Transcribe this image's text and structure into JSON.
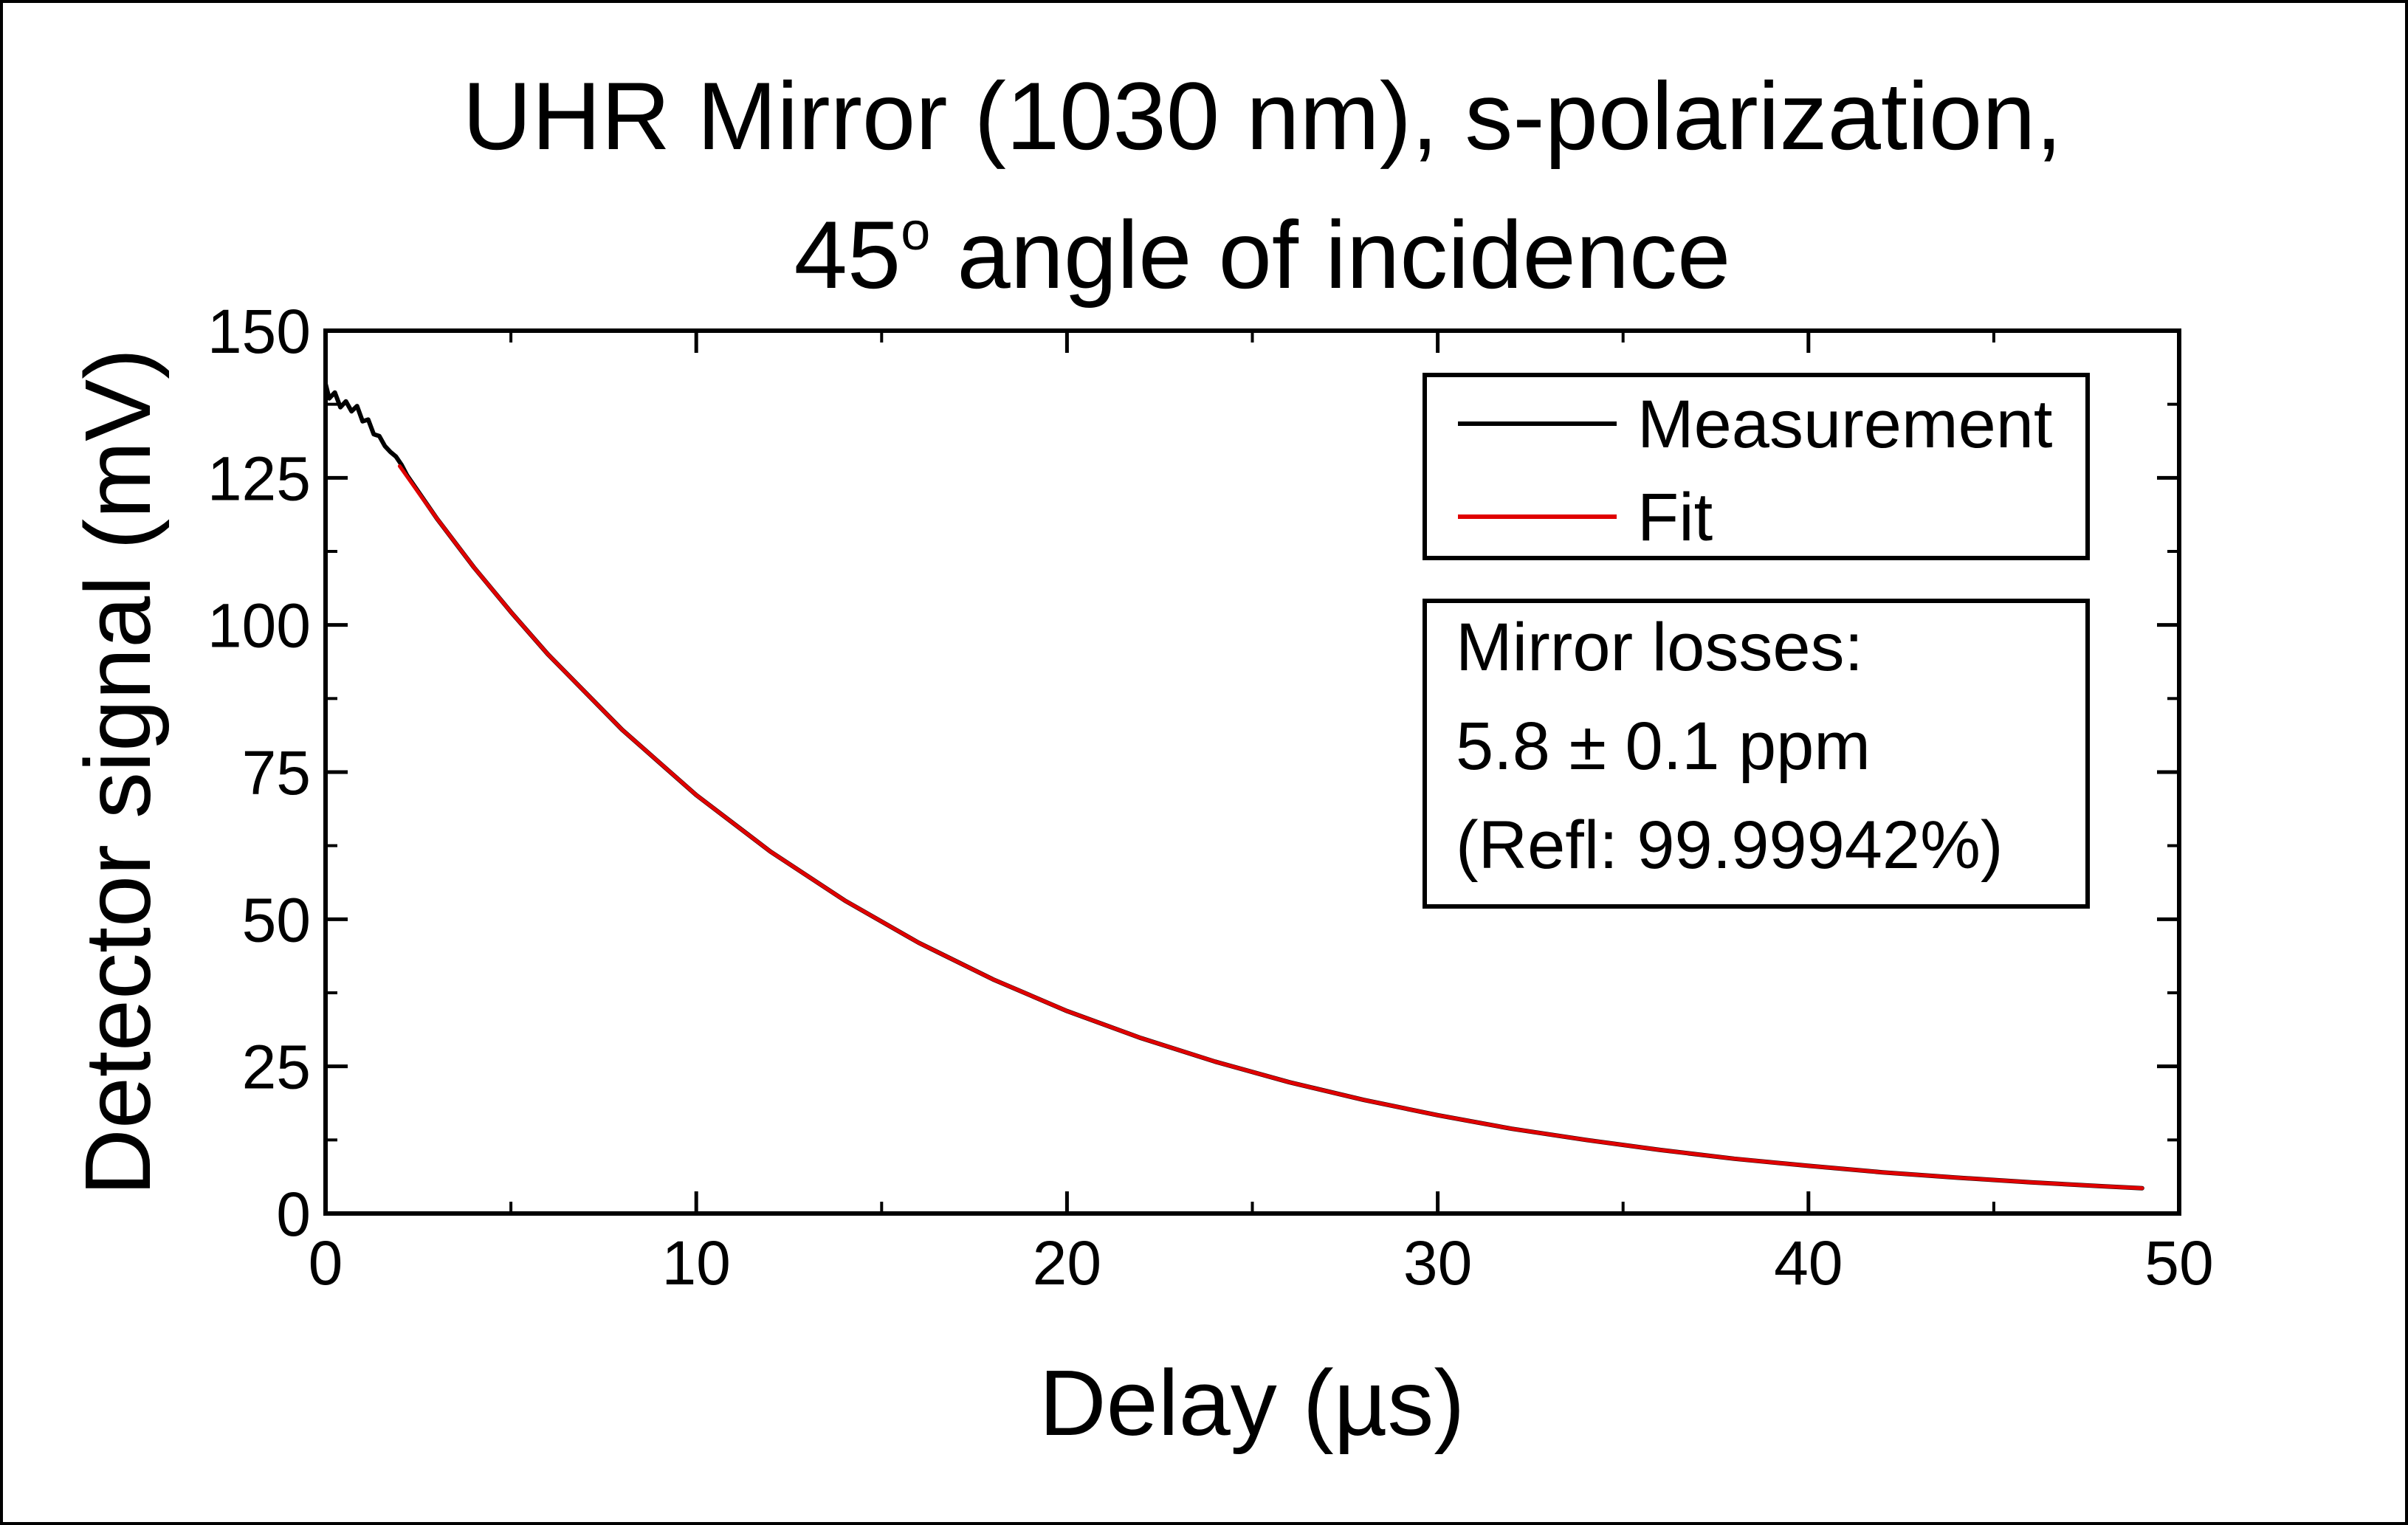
{
  "chart_data": {
    "type": "line",
    "title_line1": "UHR Mirror (1030 nm), s-polarization,",
    "title_line2_number": "45",
    "title_line2_degree": "o",
    "title_line2_rest": " angle of incidence",
    "xlabel": "Delay (µs)",
    "ylabel": "Detector signal (mV)",
    "xlim": [
      0,
      50
    ],
    "ylim": [
      0,
      150
    ],
    "x_ticks": [
      "0",
      "10",
      "20",
      "30",
      "40",
      "50"
    ],
    "y_ticks": [
      "0",
      "25",
      "50",
      "75",
      "100",
      "125",
      "150"
    ],
    "grid": false,
    "legend_position": "top-right",
    "series": [
      {
        "name": "Measurement",
        "color": "#000000",
        "x": [
          0,
          0.1,
          0.25,
          0.4,
          0.55,
          0.7,
          0.85,
          1.0,
          1.15,
          1.3,
          1.45,
          1.6,
          1.75,
          1.9,
          2.05,
          2.2,
          3,
          4,
          5,
          6,
          8,
          10,
          12,
          14,
          16,
          18,
          20,
          22,
          24,
          26,
          28,
          30,
          32,
          34,
          36,
          38,
          40,
          42,
          44,
          46,
          48,
          49
        ],
        "y": [
          141,
          138.5,
          139.5,
          137,
          138,
          136.3,
          137.2,
          134.6,
          134.9,
          132.4,
          132.1,
          130.4,
          129.4,
          128.6,
          127.2,
          125.4,
          118.1,
          109.8,
          102.2,
          95.0,
          82.2,
          71.1,
          61.5,
          53.2,
          46.0,
          39.8,
          34.4,
          29.8,
          25.8,
          22.3,
          19.3,
          16.7,
          14.4,
          12.5,
          10.8,
          9.3,
          8.1,
          7.0,
          6.1,
          5.3,
          4.6,
          4.3
        ]
      },
      {
        "name": "Fit",
        "color": "#e00000",
        "x": [
          2.0,
          3,
          4,
          5,
          6,
          8,
          10,
          12,
          14,
          16,
          18,
          20,
          22,
          24,
          26,
          28,
          30,
          32,
          34,
          36,
          38,
          40,
          42,
          44,
          46,
          48,
          49
        ],
        "y": [
          127.0,
          118.1,
          109.8,
          102.2,
          95.0,
          82.2,
          71.1,
          61.5,
          53.2,
          46.0,
          39.8,
          34.4,
          29.8,
          25.8,
          22.3,
          19.3,
          16.7,
          14.4,
          12.5,
          10.8,
          9.3,
          8.1,
          7.0,
          6.1,
          5.3,
          4.6,
          4.3
        ]
      }
    ],
    "annotation": {
      "line1": "Mirror losses:",
      "line2": "5.8 ± 0.1 ppm",
      "line3": "(Refl: 99.99942%)"
    }
  }
}
